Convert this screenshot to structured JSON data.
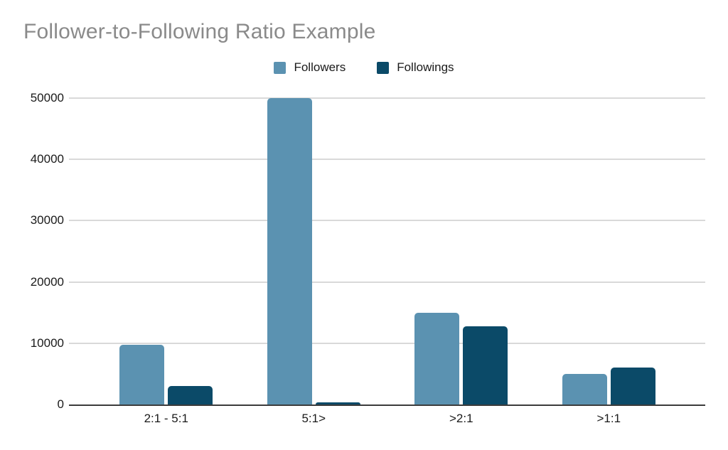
{
  "chart_data": {
    "type": "bar",
    "title": "Follower-to-Following Ratio Example",
    "categories": [
      "2:1 - 5:1",
      "5:1>",
      ">2:1",
      ">1:1"
    ],
    "series": [
      {
        "name": "Followers",
        "color": "#5b92b1",
        "values": [
          9800,
          50000,
          15000,
          5000
        ]
      },
      {
        "name": "Followings",
        "color": "#0b4a68",
        "values": [
          3000,
          300,
          12800,
          6000
        ]
      }
    ],
    "xlabel": "",
    "ylabel": "",
    "ylim": [
      0,
      50000
    ],
    "yticks": [
      0,
      10000,
      20000,
      30000,
      40000,
      50000
    ],
    "grid": true,
    "legend_position": "top"
  },
  "colors": {
    "background": "#ffffff",
    "title_text": "#8a8a8a",
    "axis_text": "#1a1a1a",
    "gridline": "#d9d9d9",
    "baseline": "#3c3c3c"
  }
}
